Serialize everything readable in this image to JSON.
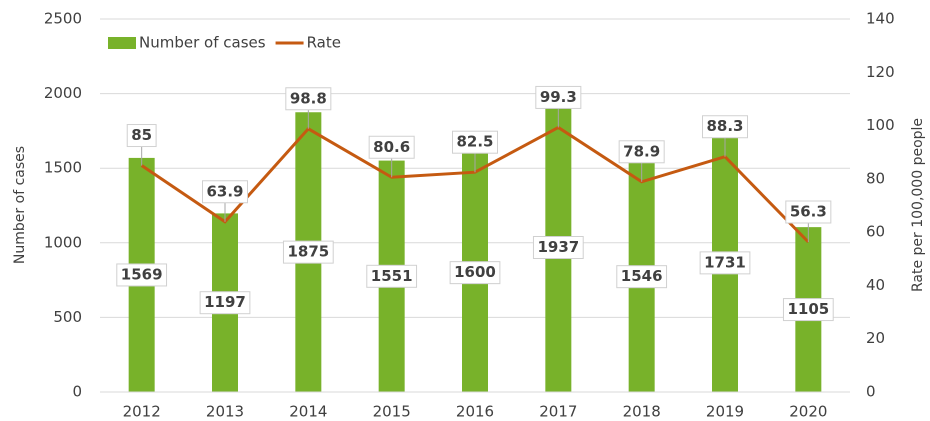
{
  "chart_data": {
    "type": "bar",
    "categories": [
      "2012",
      "2013",
      "2014",
      "2015",
      "2016",
      "2017",
      "2018",
      "2019",
      "2020"
    ],
    "series": [
      {
        "name": "Number of cases",
        "color": "#78b22a",
        "values": [
          1569,
          1197,
          1875,
          1551,
          1600,
          1937,
          1546,
          1731,
          1105
        ]
      },
      {
        "name": "Rate",
        "color": "#c55a11",
        "type": "line",
        "axis": "y2",
        "values": [
          85,
          63.9,
          98.8,
          80.6,
          82.5,
          99.3,
          78.9,
          88.3,
          56.3
        ]
      }
    ],
    "ylabel": "Number of cases",
    "y2label": "Rate per 100,000 people",
    "ylim": [
      0,
      2500
    ],
    "yticks": [
      0,
      500,
      1000,
      1500,
      2000,
      2500
    ],
    "y2lim": [
      0,
      140
    ],
    "y2ticks": [
      0,
      20,
      40,
      60,
      80,
      100,
      120,
      140
    ],
    "grid": true,
    "legend": "top-left"
  }
}
